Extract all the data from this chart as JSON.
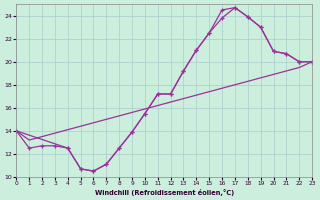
{
  "xlabel": "Windchill (Refroidissement éolien,°C)",
  "bg_color": "#cceedd",
  "grid_color": "#aacccc",
  "line_color": "#993399",
  "xlim": [
    0,
    23
  ],
  "ylim": [
    10,
    25
  ],
  "yticks": [
    10,
    12,
    14,
    16,
    18,
    20,
    22,
    24
  ],
  "xticks": [
    0,
    1,
    2,
    3,
    4,
    5,
    6,
    7,
    8,
    9,
    10,
    11,
    12,
    13,
    14,
    15,
    16,
    17,
    18,
    19,
    20,
    21,
    22,
    23
  ],
  "curve1_x": [
    0,
    1,
    2,
    3,
    4,
    5,
    6,
    7,
    8,
    9,
    10,
    11,
    12,
    13,
    14,
    15,
    16,
    17,
    18,
    19,
    20,
    21,
    22,
    23
  ],
  "curve1_y": [
    14.0,
    12.5,
    12.7,
    12.7,
    12.5,
    10.7,
    10.5,
    11.1,
    12.5,
    13.9,
    15.5,
    17.2,
    17.2,
    19.2,
    21.0,
    22.5,
    23.8,
    24.7,
    23.9,
    23.0,
    20.9,
    20.7,
    20.0,
    20.0
  ],
  "curve2_x": [
    0,
    1,
    2,
    3,
    4,
    5,
    6,
    7,
    8,
    9,
    10,
    11,
    12,
    13,
    14,
    15,
    16,
    17,
    18,
    19,
    20,
    21,
    22,
    23
  ],
  "curve2_y": [
    14.0,
    13.2,
    13.5,
    13.8,
    14.1,
    14.4,
    14.7,
    15.0,
    15.3,
    15.6,
    15.9,
    16.2,
    16.5,
    16.8,
    17.1,
    17.4,
    17.7,
    18.0,
    18.3,
    18.6,
    18.9,
    19.2,
    19.5,
    20.0
  ],
  "curve3_x": [
    0,
    4,
    5,
    6,
    7,
    8,
    9,
    10,
    11,
    12,
    13,
    14,
    15,
    16,
    17,
    18,
    19,
    20,
    21,
    22,
    23
  ],
  "curve3_y": [
    14.0,
    12.5,
    10.7,
    10.5,
    11.1,
    12.5,
    13.9,
    15.5,
    17.2,
    17.2,
    19.2,
    21.0,
    22.5,
    24.5,
    24.7,
    23.9,
    23.0,
    20.9,
    20.7,
    20.0,
    20.0
  ]
}
